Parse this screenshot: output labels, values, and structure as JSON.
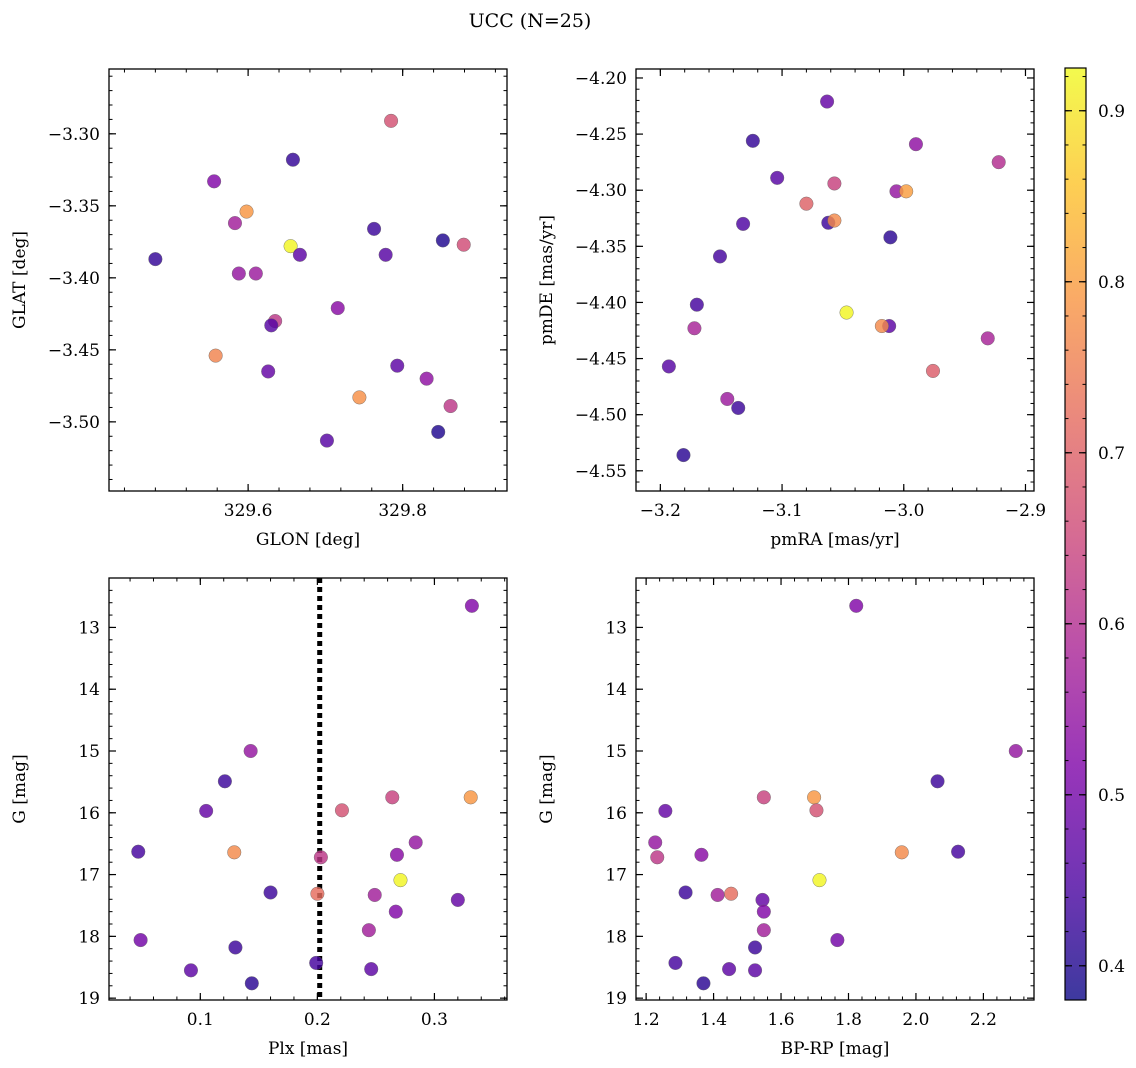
{
  "figure": {
    "suptitle": "UCC (N=25)"
  },
  "colorbar": {
    "colormap": "plasma",
    "range": [
      0.38,
      0.925
    ],
    "ticks": [
      0.4,
      0.5,
      0.6,
      0.7,
      0.8,
      0.9
    ],
    "tick_labels": [
      "0.4",
      "0.5",
      "0.6",
      "0.7",
      "0.8",
      "0.9"
    ]
  },
  "chart_data": [
    {
      "type": "scatter",
      "title": "",
      "xlabel": "GLON [deg]",
      "ylabel": "GLAT [deg]",
      "xlim": [
        329.42,
        329.935
      ],
      "ylim": [
        -3.548,
        -3.255
      ],
      "yinvert": false,
      "xticks": [
        329.6,
        329.8
      ],
      "xtick_labels": [
        "329.6",
        "329.8"
      ],
      "yticks": [
        -3.3,
        -3.35,
        -3.4,
        -3.45,
        -3.5
      ],
      "ytick_labels": [
        "−3.30",
        "−3.35",
        "−3.40",
        "−3.45",
        "−3.50"
      ],
      "points": [
        {
          "x": 329.785,
          "y": -3.291,
          "c": 0.67
        },
        {
          "x": 329.658,
          "y": -3.318,
          "c": 0.42
        },
        {
          "x": 329.556,
          "y": -3.333,
          "c": 0.52
        },
        {
          "x": 329.598,
          "y": -3.354,
          "c": 0.79
        },
        {
          "x": 329.583,
          "y": -3.362,
          "c": 0.57
        },
        {
          "x": 329.763,
          "y": -3.366,
          "c": 0.43
        },
        {
          "x": 329.852,
          "y": -3.374,
          "c": 0.4
        },
        {
          "x": 329.879,
          "y": -3.377,
          "c": 0.66
        },
        {
          "x": 329.655,
          "y": -3.378,
          "c": 0.92
        },
        {
          "x": 329.667,
          "y": -3.384,
          "c": 0.47
        },
        {
          "x": 329.778,
          "y": -3.384,
          "c": 0.46
        },
        {
          "x": 329.48,
          "y": -3.387,
          "c": 0.42
        },
        {
          "x": 329.588,
          "y": -3.397,
          "c": 0.55
        },
        {
          "x": 329.61,
          "y": -3.397,
          "c": 0.56
        },
        {
          "x": 329.716,
          "y": -3.421,
          "c": 0.53
        },
        {
          "x": 329.635,
          "y": -3.43,
          "c": 0.62
        },
        {
          "x": 329.63,
          "y": -3.433,
          "c": 0.46
        },
        {
          "x": 329.558,
          "y": -3.454,
          "c": 0.76
        },
        {
          "x": 329.793,
          "y": -3.461,
          "c": 0.47
        },
        {
          "x": 329.626,
          "y": -3.465,
          "c": 0.48
        },
        {
          "x": 329.831,
          "y": -3.47,
          "c": 0.54
        },
        {
          "x": 329.744,
          "y": -3.483,
          "c": 0.78
        },
        {
          "x": 329.862,
          "y": -3.489,
          "c": 0.62
        },
        {
          "x": 329.846,
          "y": -3.507,
          "c": 0.4
        },
        {
          "x": 329.702,
          "y": -3.513,
          "c": 0.46
        }
      ]
    },
    {
      "type": "scatter",
      "title": "",
      "xlabel": "pmRA [mas/yr]",
      "ylabel": "pmDE [mas/yr]",
      "xlim": [
        -3.22,
        -2.893
      ],
      "ylim": [
        -4.568,
        -4.192
      ],
      "yinvert": false,
      "xticks": [
        -3.2,
        -3.1,
        -3.0,
        -2.9
      ],
      "xtick_labels": [
        "−3.2",
        "−3.1",
        "−3.0",
        "−2.9"
      ],
      "yticks": [
        -4.2,
        -4.25,
        -4.3,
        -4.35,
        -4.4,
        -4.45,
        -4.5,
        -4.55
      ],
      "ytick_labels": [
        "−4.20",
        "−4.25",
        "−4.30",
        "−4.35",
        "−4.40",
        "−4.45",
        "−4.50",
        "−4.55"
      ],
      "points": [
        {
          "x": -3.063,
          "y": -4.221,
          "c": 0.48
        },
        {
          "x": -3.124,
          "y": -4.256,
          "c": 0.42
        },
        {
          "x": -2.99,
          "y": -4.259,
          "c": 0.54
        },
        {
          "x": -2.922,
          "y": -4.275,
          "c": 0.6
        },
        {
          "x": -3.104,
          "y": -4.289,
          "c": 0.46
        },
        {
          "x": -3.057,
          "y": -4.294,
          "c": 0.64
        },
        {
          "x": -3.006,
          "y": -4.301,
          "c": 0.55
        },
        {
          "x": -2.998,
          "y": -4.301,
          "c": 0.8
        },
        {
          "x": -3.08,
          "y": -4.312,
          "c": 0.7
        },
        {
          "x": -3.132,
          "y": -4.33,
          "c": 0.45
        },
        {
          "x": -3.062,
          "y": -4.329,
          "c": 0.43
        },
        {
          "x": -3.057,
          "y": -4.327,
          "c": 0.77
        },
        {
          "x": -3.011,
          "y": -4.342,
          "c": 0.41
        },
        {
          "x": -3.151,
          "y": -4.359,
          "c": 0.44
        },
        {
          "x": -3.17,
          "y": -4.402,
          "c": 0.44
        },
        {
          "x": -3.047,
          "y": -4.409,
          "c": 0.92
        },
        {
          "x": -3.012,
          "y": -4.421,
          "c": 0.47
        },
        {
          "x": -3.018,
          "y": -4.421,
          "c": 0.77
        },
        {
          "x": -3.172,
          "y": -4.423,
          "c": 0.58
        },
        {
          "x": -2.931,
          "y": -4.432,
          "c": 0.58
        },
        {
          "x": -3.193,
          "y": -4.457,
          "c": 0.46
        },
        {
          "x": -2.976,
          "y": -4.461,
          "c": 0.69
        },
        {
          "x": -3.145,
          "y": -4.486,
          "c": 0.56
        },
        {
          "x": -3.136,
          "y": -4.494,
          "c": 0.43
        },
        {
          "x": -3.181,
          "y": -4.536,
          "c": 0.41
        }
      ]
    },
    {
      "type": "scatter",
      "title": "",
      "xlabel": "Plx [mas]",
      "ylabel": "G [mag]",
      "xlim": [
        0.022,
        0.362
      ],
      "ylim": [
        12.2,
        19.03
      ],
      "yinvert": true,
      "xticks": [
        0.1,
        0.2,
        0.3
      ],
      "xtick_labels": [
        "0.1",
        "0.2",
        "0.3"
      ],
      "yticks": [
        13,
        14,
        15,
        16,
        17,
        18,
        19
      ],
      "ytick_labels": [
        "13",
        "14",
        "15",
        "16",
        "17",
        "18",
        "19"
      ],
      "vline": 0.202,
      "points": [
        {
          "x": 0.332,
          "y": 12.65,
          "c": 0.52
        },
        {
          "x": 0.143,
          "y": 15.0,
          "c": 0.55
        },
        {
          "x": 0.121,
          "y": 15.49,
          "c": 0.43
        },
        {
          "x": 0.331,
          "y": 15.75,
          "c": 0.79
        },
        {
          "x": 0.264,
          "y": 15.75,
          "c": 0.64
        },
        {
          "x": 0.221,
          "y": 15.96,
          "c": 0.67
        },
        {
          "x": 0.105,
          "y": 15.97,
          "c": 0.48
        },
        {
          "x": 0.284,
          "y": 16.48,
          "c": 0.55
        },
        {
          "x": 0.047,
          "y": 16.63,
          "c": 0.44
        },
        {
          "x": 0.129,
          "y": 16.64,
          "c": 0.77
        },
        {
          "x": 0.268,
          "y": 16.68,
          "c": 0.53
        },
        {
          "x": 0.203,
          "y": 16.72,
          "c": 0.62
        },
        {
          "x": 0.271,
          "y": 17.09,
          "c": 0.92
        },
        {
          "x": 0.16,
          "y": 17.29,
          "c": 0.43
        },
        {
          "x": 0.2,
          "y": 17.31,
          "c": 0.72
        },
        {
          "x": 0.249,
          "y": 17.33,
          "c": 0.57
        },
        {
          "x": 0.32,
          "y": 17.41,
          "c": 0.48
        },
        {
          "x": 0.267,
          "y": 17.6,
          "c": 0.52
        },
        {
          "x": 0.244,
          "y": 17.9,
          "c": 0.57
        },
        {
          "x": 0.049,
          "y": 18.06,
          "c": 0.5
        },
        {
          "x": 0.13,
          "y": 18.18,
          "c": 0.43
        },
        {
          "x": 0.199,
          "y": 18.43,
          "c": 0.44
        },
        {
          "x": 0.246,
          "y": 18.53,
          "c": 0.47
        },
        {
          "x": 0.092,
          "y": 18.55,
          "c": 0.47
        },
        {
          "x": 0.144,
          "y": 18.76,
          "c": 0.41
        }
      ]
    },
    {
      "type": "scatter",
      "title": "",
      "xlabel": "BP-RP [mag]",
      "ylabel": "G [mag]",
      "xlim": [
        1.17,
        2.35
      ],
      "ylim": [
        12.2,
        19.03
      ],
      "yinvert": true,
      "xticks": [
        1.2,
        1.4,
        1.6,
        1.8,
        2.0,
        2.2
      ],
      "xtick_labels": [
        "1.2",
        "1.4",
        "1.6",
        "1.8",
        "2.0",
        "2.2"
      ],
      "yticks": [
        13,
        14,
        15,
        16,
        17,
        18,
        19
      ],
      "ytick_labels": [
        "13",
        "14",
        "15",
        "16",
        "17",
        "18",
        "19"
      ],
      "points": [
        {
          "x": 1.823,
          "y": 12.65,
          "c": 0.52
        },
        {
          "x": 2.296,
          "y": 15.0,
          "c": 0.55
        },
        {
          "x": 2.064,
          "y": 15.49,
          "c": 0.43
        },
        {
          "x": 1.549,
          "y": 15.75,
          "c": 0.64
        },
        {
          "x": 1.698,
          "y": 15.75,
          "c": 0.79
        },
        {
          "x": 1.705,
          "y": 15.96,
          "c": 0.67
        },
        {
          "x": 1.257,
          "y": 15.97,
          "c": 0.48
        },
        {
          "x": 1.227,
          "y": 16.48,
          "c": 0.55
        },
        {
          "x": 2.125,
          "y": 16.63,
          "c": 0.44
        },
        {
          "x": 1.958,
          "y": 16.64,
          "c": 0.77
        },
        {
          "x": 1.364,
          "y": 16.68,
          "c": 0.53
        },
        {
          "x": 1.233,
          "y": 16.72,
          "c": 0.62
        },
        {
          "x": 1.714,
          "y": 17.09,
          "c": 0.92
        },
        {
          "x": 1.317,
          "y": 17.29,
          "c": 0.43
        },
        {
          "x": 1.452,
          "y": 17.31,
          "c": 0.72
        },
        {
          "x": 1.412,
          "y": 17.33,
          "c": 0.57
        },
        {
          "x": 1.545,
          "y": 17.41,
          "c": 0.48
        },
        {
          "x": 1.549,
          "y": 17.6,
          "c": 0.52
        },
        {
          "x": 1.549,
          "y": 17.9,
          "c": 0.57
        },
        {
          "x": 1.767,
          "y": 18.06,
          "c": 0.5
        },
        {
          "x": 1.523,
          "y": 18.18,
          "c": 0.43
        },
        {
          "x": 1.287,
          "y": 18.43,
          "c": 0.44
        },
        {
          "x": 1.446,
          "y": 18.53,
          "c": 0.47
        },
        {
          "x": 1.523,
          "y": 18.55,
          "c": 0.47
        },
        {
          "x": 1.37,
          "y": 18.76,
          "c": 0.41
        }
      ]
    }
  ]
}
